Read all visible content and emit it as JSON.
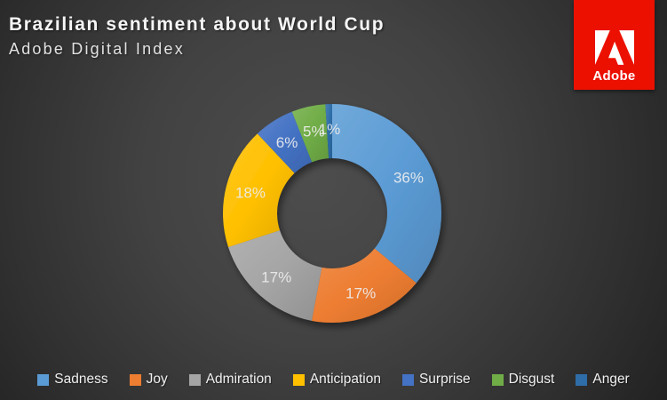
{
  "header": {
    "title": "Brazilian sentiment about World Cup",
    "subtitle": "Adobe Digital Index"
  },
  "logo": {
    "brand": "Adobe",
    "color": "#EB1000"
  },
  "chart_data": {
    "type": "pie",
    "subtype": "donut",
    "title": "Brazilian sentiment about World Cup",
    "categories": [
      "Sadness",
      "Joy",
      "Admiration",
      "Anticipation",
      "Surprise",
      "Disgust",
      "Anger"
    ],
    "values": [
      36,
      17,
      17,
      18,
      6,
      5,
      1
    ],
    "percent_labels": [
      "36%",
      "17%",
      "17%",
      "18%",
      "6%",
      "5%",
      "1%"
    ],
    "colors": [
      "#5B9BD5",
      "#ED7D31",
      "#A5A5A5",
      "#FFC000",
      "#4472C4",
      "#70AD47",
      "#2E6DA8"
    ],
    "legend_position": "bottom",
    "start_angle_deg": 0,
    "direction": "clockwise",
    "inner_radius_ratio": 0.5
  }
}
